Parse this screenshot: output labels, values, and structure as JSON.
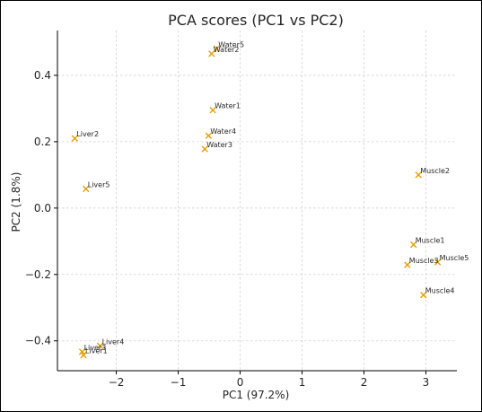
{
  "chart_data": {
    "type": "scatter",
    "title": "PCA scores (PC1 vs PC2)",
    "xlabel": "PC1 (97.2%)",
    "ylabel": "PC2 (1.8%)",
    "xlim": [
      -2.95,
      3.5
    ],
    "ylim": [
      -0.49,
      0.535
    ],
    "xticks": [
      -2,
      -1,
      0,
      1,
      2,
      3
    ],
    "xtick_labels": [
      "−2",
      "−1",
      "0",
      "1",
      "2",
      "3"
    ],
    "yticks": [
      -0.4,
      -0.2,
      0.0,
      0.2,
      0.4
    ],
    "ytick_labels": [
      "−0.4",
      "−0.2",
      "0.0",
      "0.2",
      "0.4"
    ],
    "grid": true,
    "marker": "x",
    "marker_color": "#e69f00",
    "points": [
      {
        "label": "Water5",
        "x": -0.38,
        "y": 0.48
      },
      {
        "label": "Water2",
        "x": -0.46,
        "y": 0.465
      },
      {
        "label": "Water1",
        "x": -0.44,
        "y": 0.295
      },
      {
        "label": "Water4",
        "x": -0.51,
        "y": 0.218
      },
      {
        "label": "Water3",
        "x": -0.57,
        "y": 0.178
      },
      {
        "label": "Liver2",
        "x": -2.67,
        "y": 0.21
      },
      {
        "label": "Liver5",
        "x": -2.49,
        "y": 0.058
      },
      {
        "label": "Muscle2",
        "x": 2.88,
        "y": 0.1
      },
      {
        "label": "Muscle1",
        "x": 2.8,
        "y": -0.11
      },
      {
        "label": "Muscle5",
        "x": 3.19,
        "y": -0.163
      },
      {
        "label": "Muscle3",
        "x": 2.7,
        "y": -0.171
      },
      {
        "label": "Muscle4",
        "x": 2.96,
        "y": -0.262
      },
      {
        "label": "Liver4",
        "x": -2.26,
        "y": -0.415
      },
      {
        "label": "Liver3",
        "x": -2.55,
        "y": -0.433
      },
      {
        "label": "Liver1",
        "x": -2.53,
        "y": -0.443
      }
    ]
  }
}
